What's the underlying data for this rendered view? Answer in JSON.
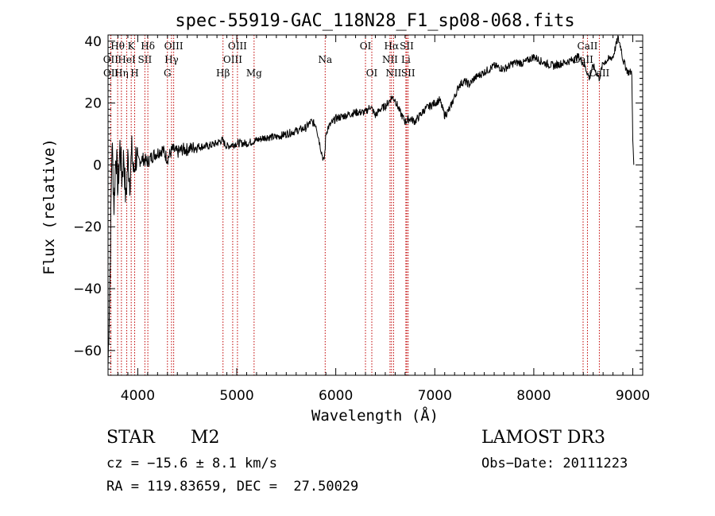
{
  "chart_data": {
    "type": "line",
    "title": "spec-55919-GAC_118N28_F1_sp08-068.fits",
    "xlabel": "Wavelength (Å)",
    "ylabel": "Flux (relative)",
    "xlim": [
      3700,
      9100
    ],
    "ylim": [
      -68,
      42
    ],
    "xticks": [
      4000,
      5000,
      6000,
      7000,
      8000,
      9000
    ],
    "xtick_labels": [
      "4000",
      "5000",
      "6000",
      "7000",
      "8000",
      "9000"
    ],
    "yticks": [
      -60,
      -40,
      -20,
      0,
      20,
      40
    ],
    "ytick_labels": [
      "−60",
      "−40",
      "−20",
      "0",
      "20",
      "40"
    ],
    "spectrum": {
      "name": "flux",
      "x": [
        3700,
        3720,
        3740,
        3760,
        3780,
        3800,
        3820,
        3840,
        3860,
        3880,
        3900,
        3920,
        3940,
        3960,
        3980,
        4000,
        4050,
        4100,
        4150,
        4200,
        4250,
        4300,
        4350,
        4400,
        4450,
        4500,
        4600,
        4700,
        4800,
        4850,
        4900,
        5000,
        5100,
        5200,
        5300,
        5400,
        5500,
        5600,
        5700,
        5750,
        5800,
        5850,
        5880,
        5890,
        5900,
        5920,
        6000,
        6100,
        6200,
        6300,
        6350,
        6400,
        6450,
        6500,
        6550,
        6563,
        6600,
        6650,
        6700,
        6750,
        6800,
        6850,
        6900,
        6950,
        7000,
        7050,
        7100,
        7150,
        7200,
        7250,
        7300,
        7350,
        7400,
        7500,
        7600,
        7700,
        7800,
        7900,
        8000,
        8100,
        8200,
        8300,
        8400,
        8450,
        8500,
        8540,
        8560,
        8600,
        8660,
        8700,
        8750,
        8800,
        8850,
        8880,
        8900,
        8950,
        8990,
        9000,
        9010
      ],
      "values": [
        -65,
        -35,
        8,
        -13,
        5,
        -8,
        6,
        -4,
        3,
        -12,
        2,
        -5,
        4,
        -3,
        3,
        1,
        2,
        1,
        3,
        4,
        5,
        2,
        5,
        4,
        5,
        5,
        6,
        6,
        7,
        8,
        6,
        7,
        7,
        8,
        9,
        9,
        10,
        11,
        12,
        14,
        13,
        5,
        1,
        4,
        10,
        12,
        15,
        16,
        17,
        17,
        19,
        16,
        18,
        19,
        21,
        22,
        21,
        17,
        14,
        15,
        14,
        16,
        18,
        19,
        20,
        21,
        16,
        18,
        22,
        26,
        27,
        26,
        28,
        30,
        32,
        31,
        33,
        33,
        35,
        33,
        32,
        33,
        34,
        35,
        33,
        30,
        28,
        32,
        28,
        33,
        34,
        35,
        41,
        38,
        34,
        30,
        30,
        8,
        0
      ]
    },
    "line_markers": [
      {
        "label": "Hθ",
        "x": 3797,
        "row": 1
      },
      {
        "label": "OII",
        "x": 3727,
        "row": 2
      },
      {
        "label": "OII",
        "x": 3729,
        "row": 3
      },
      {
        "label": "HeI",
        "x": 3889,
        "row": 2
      },
      {
        "label": "Hη",
        "x": 3835,
        "row": 3
      },
      {
        "label": "K",
        "x": 3934,
        "row": 1
      },
      {
        "label": "SII",
        "x": 4072,
        "row": 2
      },
      {
        "label": "H",
        "x": 3969,
        "row": 3
      },
      {
        "label": "Hδ",
        "x": 4102,
        "row": 1
      },
      {
        "label": "OIII",
        "x": 4363,
        "row": 1
      },
      {
        "label": "Hγ",
        "x": 4341,
        "row": 2
      },
      {
        "label": "G",
        "x": 4300,
        "row": 3
      },
      {
        "label": "OIII",
        "x": 5007,
        "row": 1
      },
      {
        "label": "OIII",
        "x": 4959,
        "row": 2
      },
      {
        "label": "Hβ",
        "x": 4861,
        "row": 3
      },
      {
        "label": "Mg",
        "x": 5175,
        "row": 3
      },
      {
        "label": "Na",
        "x": 5893,
        "row": 2
      },
      {
        "label": "OI",
        "x": 6300,
        "row": 1
      },
      {
        "label": "OI",
        "x": 6364,
        "row": 3
      },
      {
        "label": "Hα",
        "x": 6563,
        "row": 1
      },
      {
        "label": "SII",
        "x": 6717,
        "row": 1
      },
      {
        "label": "NII",
        "x": 6548,
        "row": 2
      },
      {
        "label": "Li",
        "x": 6708,
        "row": 2
      },
      {
        "label": "NII",
        "x": 6584,
        "row": 3
      },
      {
        "label": "SII",
        "x": 6731,
        "row": 3
      },
      {
        "label": "CaII",
        "x": 8542,
        "row": 1
      },
      {
        "label": "CaII",
        "x": 8498,
        "row": 2
      },
      {
        "label": "CaII",
        "x": 8662,
        "row": 3
      }
    ]
  },
  "info": {
    "class": "STAR",
    "subclass": "M2",
    "survey": "LAMOST DR3",
    "cz": "cz = −15.6 ± 8.1 km/s",
    "obs_date": "Obs−Date: 20111223",
    "coords": "RA = 119.83659, DEC =  27.50029"
  }
}
